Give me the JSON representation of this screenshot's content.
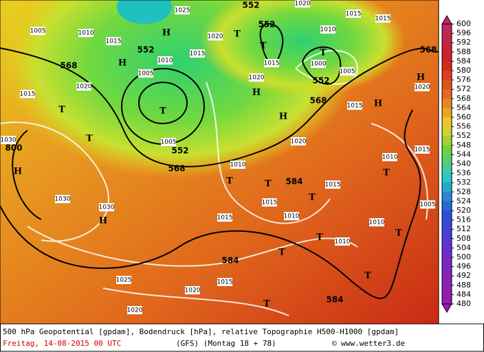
{
  "caption": {
    "line1": "500 hPa Geopotential [gpdam], Bodendruck [hPa], relative Topographie H500-H1000 [gpdam]",
    "date": "Freitag, 14-08-2015  00 UTC",
    "model": "(GFS)  (Montag 18 + 78)",
    "credit": "© www.wetter3.de"
  },
  "legend": {
    "ticks": [
      600,
      596,
      592,
      588,
      584,
      580,
      576,
      572,
      568,
      564,
      560,
      556,
      552,
      548,
      544,
      540,
      536,
      532,
      528,
      524,
      520,
      516,
      512,
      508,
      504,
      500,
      496,
      492,
      488,
      484,
      480
    ]
  },
  "map_labels": [
    "1025",
    "1005",
    "1010",
    "H",
    "552",
    "552",
    "T",
    "1020",
    "T",
    "552",
    "1015",
    "1015",
    "H",
    "568",
    "1020",
    "1015",
    "T",
    "T",
    "T",
    "800",
    "H",
    "1005",
    "552",
    "568",
    "H",
    "H",
    "568",
    "552",
    "T",
    "1000",
    "1005",
    "568",
    "H",
    "H",
    "1015",
    "1020",
    "1010",
    "T",
    "T",
    "584",
    "T",
    "1015",
    "1015",
    "1015",
    "1010",
    "1030",
    "1030",
    "H",
    "T",
    "1010",
    "1010",
    "T",
    "T",
    "584",
    "1025",
    "1015",
    "1020",
    "T",
    "584",
    "T",
    "1020",
    "1005",
    "1015",
    "1010",
    "T",
    "1020",
    "1015",
    "1015",
    "1020",
    "1010",
    "1015",
    "1020",
    "1005",
    "1010",
    "1030"
  ]
}
